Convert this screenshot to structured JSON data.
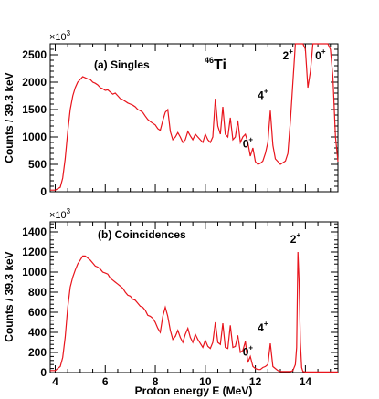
{
  "chart_data": [
    {
      "type": "line",
      "label": "(a) Singles",
      "nucleus": {
        "mass": "46",
        "symbol": "Ti"
      },
      "ylabel": "Counts / 39.3 keV",
      "multiplier": "×10",
      "multiplier_exp": "3",
      "xlim": [
        3.8,
        15.3
      ],
      "ylim": [
        0,
        2700
      ],
      "yticks": [
        0,
        500,
        1000,
        1500,
        2000,
        2500
      ],
      "series": [
        {
          "color": "#e8141c",
          "x": [
            3.8,
            4.0,
            4.2,
            4.3,
            4.4,
            4.5,
            4.6,
            4.7,
            4.8,
            4.9,
            5.0,
            5.1,
            5.2,
            5.3,
            5.4,
            5.5,
            5.6,
            5.7,
            5.8,
            5.9,
            6.0,
            6.1,
            6.2,
            6.3,
            6.4,
            6.5,
            6.6,
            6.7,
            6.8,
            6.9,
            7.0,
            7.1,
            7.2,
            7.3,
            7.4,
            7.5,
            7.6,
            7.7,
            7.8,
            7.9,
            8.0,
            8.1,
            8.2,
            8.3,
            8.4,
            8.5,
            8.6,
            8.7,
            8.8,
            8.9,
            9.0,
            9.1,
            9.2,
            9.3,
            9.4,
            9.5,
            9.6,
            9.7,
            9.8,
            9.9,
            10.0,
            10.1,
            10.2,
            10.3,
            10.4,
            10.5,
            10.6,
            10.7,
            10.8,
            10.9,
            11.0,
            11.1,
            11.2,
            11.3,
            11.4,
            11.5,
            11.6,
            11.7,
            11.8,
            11.9,
            12.0,
            12.1,
            12.2,
            12.3,
            12.4,
            12.5,
            12.6,
            12.7,
            12.8,
            12.9,
            13.0,
            13.1,
            13.2,
            13.3,
            13.4,
            13.5,
            13.6,
            13.7,
            13.75,
            13.8,
            13.9,
            14.0,
            14.1,
            14.2,
            14.3,
            14.4,
            14.5,
            14.6,
            14.7,
            14.8,
            14.9,
            15.0,
            15.1,
            15.2,
            15.3
          ],
          "y": [
            30,
            30,
            80,
            250,
            600,
            1100,
            1500,
            1750,
            1900,
            2000,
            2050,
            2100,
            2080,
            2060,
            2050,
            2000,
            1980,
            1950,
            1900,
            1880,
            1850,
            1860,
            1820,
            1780,
            1800,
            1750,
            1700,
            1680,
            1650,
            1620,
            1600,
            1580,
            1550,
            1500,
            1480,
            1450,
            1380,
            1320,
            1280,
            1250,
            1220,
            1150,
            1120,
            1300,
            1450,
            1500,
            1100,
            950,
            1000,
            1080,
            1000,
            900,
            950,
            1100,
            1020,
            950,
            1050,
            1000,
            950,
            900,
            1050,
            950,
            900,
            1000,
            1700,
            1200,
            1050,
            1550,
            1050,
            1000,
            1350,
            950,
            1000,
            1300,
            900,
            1000,
            1050,
            900,
            650,
            800,
            550,
            500,
            520,
            560,
            700,
            900,
            1480,
            850,
            600,
            550,
            500,
            530,
            560,
            700,
            1300,
            2000,
            2700,
            2700,
            2700,
            2700,
            2700,
            2600,
            1900,
            2200,
            2700,
            2700,
            2700,
            2700,
            2700,
            2700,
            2700,
            2600,
            2100,
            1000,
            550
          ]
        }
      ],
      "annotations": [
        {
          "text": "2",
          "sup": "+",
          "x": 13.3,
          "y": 2420
        },
        {
          "text": "0",
          "sup": "+",
          "x": 14.6,
          "y": 2420
        },
        {
          "text": "4",
          "sup": "+",
          "x": 12.3,
          "y": 1690
        },
        {
          "text": "0",
          "sup": "+",
          "x": 11.7,
          "y": 810
        }
      ]
    },
    {
      "type": "line",
      "label": "(b) Coincidences",
      "ylabel": "Counts / 39.3 keV",
      "xlabel": "Proton energy E (MeV)",
      "multiplier": "×10",
      "multiplier_exp": "3",
      "xlim": [
        3.8,
        15.3
      ],
      "ylim": [
        0,
        1500
      ],
      "yticks": [
        0,
        200,
        400,
        600,
        800,
        1000,
        1200,
        1400
      ],
      "xticks": [
        4,
        6,
        8,
        10,
        12,
        14
      ],
      "series": [
        {
          "color": "#e8141c",
          "x": [
            3.8,
            4.0,
            4.2,
            4.3,
            4.4,
            4.5,
            4.6,
            4.7,
            4.8,
            4.9,
            5.0,
            5.1,
            5.2,
            5.3,
            5.4,
            5.5,
            5.6,
            5.7,
            5.8,
            5.9,
            6.0,
            6.1,
            6.2,
            6.3,
            6.4,
            6.5,
            6.6,
            6.7,
            6.8,
            6.9,
            7.0,
            7.1,
            7.2,
            7.3,
            7.4,
            7.5,
            7.6,
            7.7,
            7.8,
            7.9,
            8.0,
            8.1,
            8.2,
            8.3,
            8.4,
            8.5,
            8.6,
            8.7,
            8.8,
            8.9,
            9.0,
            9.1,
            9.2,
            9.3,
            9.4,
            9.5,
            9.6,
            9.7,
            9.8,
            9.9,
            10.0,
            10.1,
            10.2,
            10.3,
            10.4,
            10.5,
            10.6,
            10.7,
            10.8,
            10.9,
            11.0,
            11.1,
            11.2,
            11.3,
            11.4,
            11.5,
            11.6,
            11.7,
            11.8,
            11.9,
            12.0,
            12.1,
            12.2,
            12.3,
            12.4,
            12.5,
            12.6,
            12.7,
            12.8,
            12.9,
            13.0,
            13.1,
            13.2,
            13.3,
            13.4,
            13.5,
            13.6,
            13.65,
            13.7,
            13.75,
            13.8,
            13.85,
            13.9,
            14.0,
            14.2,
            14.4,
            14.6,
            14.8,
            15.0,
            15.3
          ],
          "y": [
            20,
            20,
            60,
            150,
            350,
            650,
            850,
            950,
            1020,
            1080,
            1120,
            1160,
            1160,
            1140,
            1120,
            1090,
            1060,
            1050,
            1030,
            1000,
            990,
            980,
            940,
            920,
            900,
            880,
            860,
            840,
            800,
            770,
            760,
            730,
            720,
            690,
            660,
            650,
            620,
            570,
            560,
            540,
            500,
            440,
            400,
            560,
            650,
            560,
            420,
            330,
            360,
            420,
            350,
            300,
            380,
            440,
            350,
            300,
            380,
            330,
            290,
            250,
            320,
            260,
            240,
            300,
            500,
            300,
            280,
            490,
            250,
            240,
            470,
            250,
            260,
            370,
            200,
            220,
            310,
            100,
            160,
            60,
            40,
            30,
            30,
            50,
            60,
            80,
            290,
            60,
            40,
            20,
            10,
            10,
            10,
            10,
            10,
            20,
            80,
            250,
            1200,
            900,
            300,
            50,
            10,
            5,
            5,
            5,
            5,
            5,
            5,
            5
          ]
        }
      ],
      "annotations": [
        {
          "text": "2",
          "sup": "+",
          "x": 13.6,
          "y": 1290
        },
        {
          "text": "4",
          "sup": "+",
          "x": 12.3,
          "y": 410
        },
        {
          "text": "0",
          "sup": "+",
          "x": 11.7,
          "y": 170
        }
      ]
    }
  ]
}
